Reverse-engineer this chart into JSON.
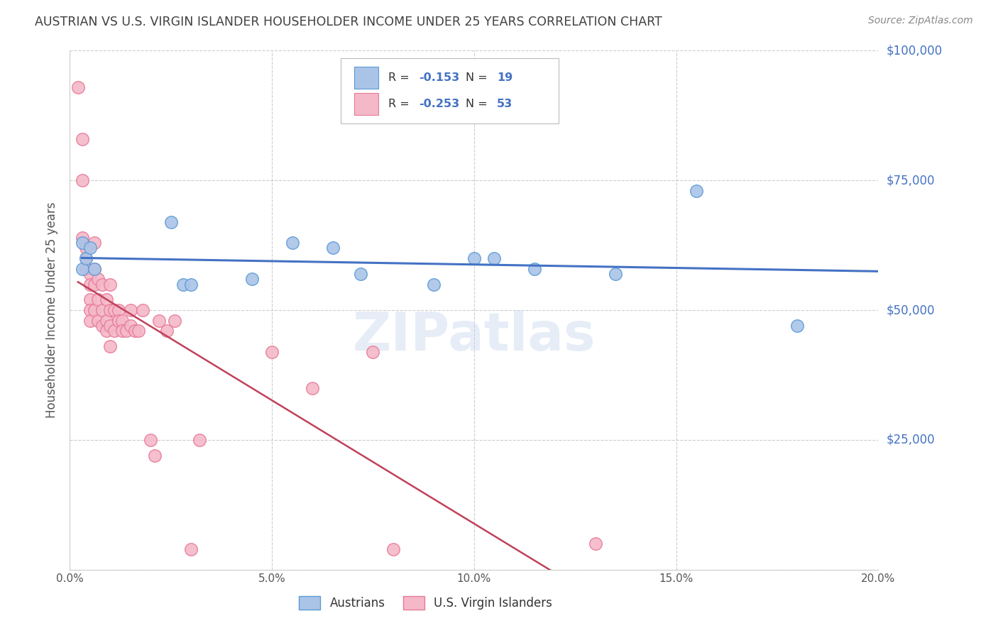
{
  "title": "AUSTRIAN VS U.S. VIRGIN ISLANDER HOUSEHOLDER INCOME UNDER 25 YEARS CORRELATION CHART",
  "source": "Source: ZipAtlas.com",
  "ylabel": "Householder Income Under 25 years",
  "xlabel_ticks": [
    "0.0%",
    "5.0%",
    "10.0%",
    "15.0%",
    "20.0%"
  ],
  "xlabel_vals": [
    0.0,
    0.05,
    0.1,
    0.15,
    0.2
  ],
  "ylabel_ticks": [
    0,
    25000,
    50000,
    75000,
    100000
  ],
  "ylabel_labels": [
    "",
    "$25,000",
    "$50,000",
    "$75,000",
    "$100,000"
  ],
  "xlim": [
    0.0,
    0.2
  ],
  "ylim": [
    0,
    100000
  ],
  "watermark": "ZIPatlas",
  "blue_R": "-0.153",
  "blue_N": "19",
  "pink_R": "-0.253",
  "pink_N": "53",
  "blue_scatter_x": [
    0.003,
    0.003,
    0.004,
    0.005,
    0.006,
    0.025,
    0.028,
    0.03,
    0.045,
    0.055,
    0.065,
    0.072,
    0.09,
    0.1,
    0.105,
    0.115,
    0.135,
    0.155,
    0.18
  ],
  "blue_scatter_y": [
    63000,
    58000,
    60000,
    62000,
    58000,
    67000,
    55000,
    55000,
    56000,
    63000,
    62000,
    57000,
    55000,
    60000,
    60000,
    58000,
    57000,
    73000,
    47000
  ],
  "pink_scatter_x": [
    0.002,
    0.003,
    0.003,
    0.003,
    0.004,
    0.004,
    0.004,
    0.005,
    0.005,
    0.005,
    0.005,
    0.005,
    0.006,
    0.006,
    0.006,
    0.006,
    0.007,
    0.007,
    0.007,
    0.008,
    0.008,
    0.008,
    0.009,
    0.009,
    0.009,
    0.01,
    0.01,
    0.01,
    0.01,
    0.011,
    0.011,
    0.012,
    0.012,
    0.013,
    0.013,
    0.014,
    0.015,
    0.015,
    0.016,
    0.017,
    0.018,
    0.02,
    0.021,
    0.022,
    0.024,
    0.026,
    0.03,
    0.032,
    0.05,
    0.06,
    0.075,
    0.08,
    0.13
  ],
  "pink_scatter_y": [
    93000,
    83000,
    75000,
    64000,
    62000,
    60000,
    58000,
    57000,
    55000,
    52000,
    50000,
    48000,
    63000,
    58000,
    55000,
    50000,
    56000,
    52000,
    48000,
    55000,
    50000,
    47000,
    52000,
    48000,
    46000,
    55000,
    50000,
    47000,
    43000,
    50000,
    46000,
    50000,
    48000,
    48000,
    46000,
    46000,
    50000,
    47000,
    46000,
    46000,
    50000,
    25000,
    22000,
    48000,
    46000,
    48000,
    4000,
    25000,
    42000,
    35000,
    42000,
    4000,
    5000
  ],
  "blue_color": "#aac4e8",
  "blue_edge_color": "#5b9bd5",
  "pink_color": "#f4b8c8",
  "pink_edge_color": "#e87a9a",
  "blue_line_color": "#4472c4",
  "pink_line_color": "#c0415a",
  "grid_color": "#cccccc",
  "background_color": "#ffffff",
  "title_color": "#404040",
  "right_label_color": "#4472c4",
  "source_color": "#888888",
  "legend_text_color": "#333333",
  "axis_label_color": "#555555"
}
